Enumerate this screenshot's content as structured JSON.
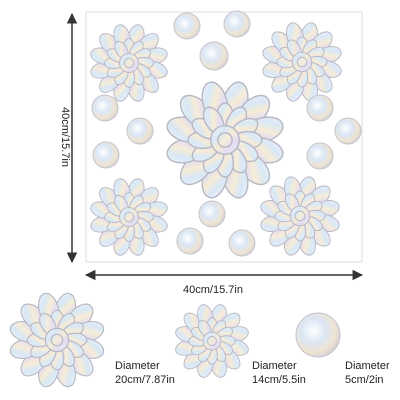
{
  "dimensions": {
    "height": "40cm/15.7in",
    "width": "40cm/15.7in"
  },
  "items": [
    {
      "label": "Diameter",
      "size": "20cm/7.87in"
    },
    {
      "label": "Diameter",
      "size": "14cm/5.5in"
    },
    {
      "label": "Diameter",
      "size": "5cm/2in"
    }
  ]
}
